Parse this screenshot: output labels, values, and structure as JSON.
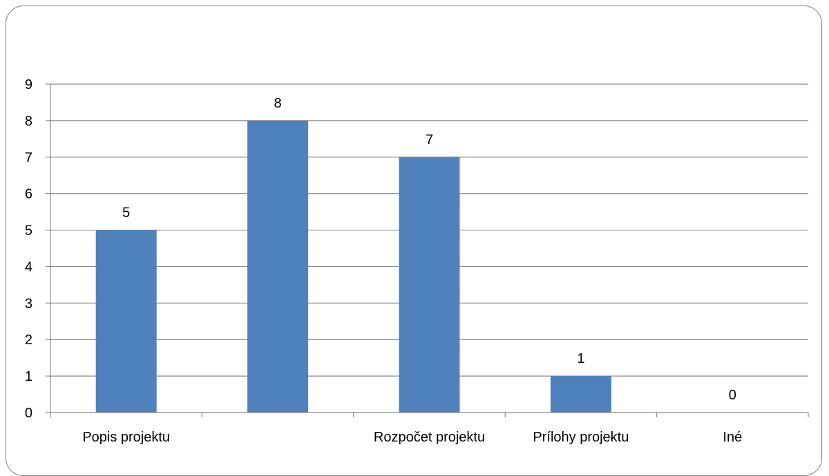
{
  "chart_data": {
    "type": "bar",
    "categories": [
      "Popis projektu",
      "",
      "Rozpočet projektu",
      "Prílohy projektu",
      "Iné"
    ],
    "values": [
      5,
      8,
      7,
      1,
      0
    ],
    "ylim": [
      0,
      9
    ],
    "yticks": [
      0,
      1,
      2,
      3,
      4,
      5,
      6,
      7,
      8,
      9
    ],
    "grid": true,
    "legend": "none",
    "data_labels": true,
    "bar_color": "#4f81bd",
    "grid_color": "#878787",
    "axis_color": "#878787"
  }
}
